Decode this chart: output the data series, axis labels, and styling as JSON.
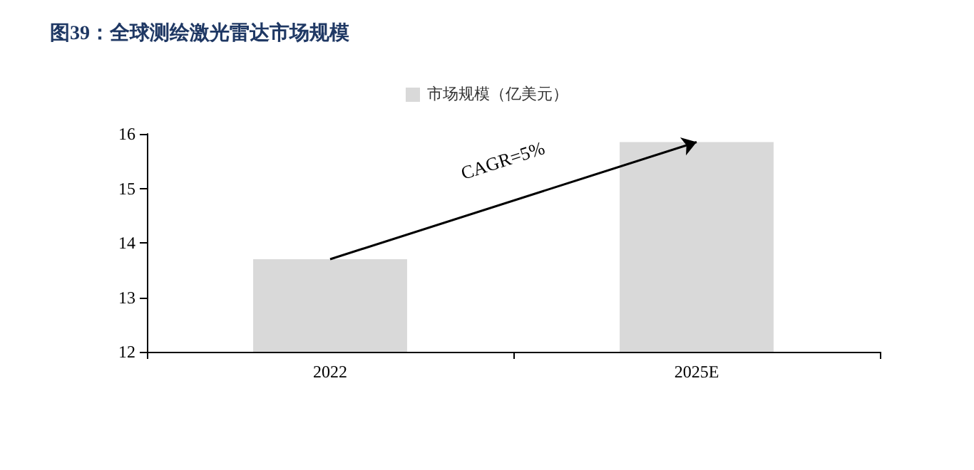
{
  "chart_data": {
    "type": "bar",
    "title": "图39：全球测绘激光雷达市场规模",
    "categories": [
      "2022",
      "2025E"
    ],
    "series": [
      {
        "name": "市场规模（亿美元）",
        "color": "#d9d9d9",
        "values": [
          13.7,
          15.85
        ]
      }
    ],
    "ylim": [
      12,
      16
    ],
    "yticks": [
      12,
      13,
      14,
      15,
      16
    ],
    "grid": false,
    "legend": "top",
    "annotations": [
      "CAGR=5%"
    ]
  }
}
